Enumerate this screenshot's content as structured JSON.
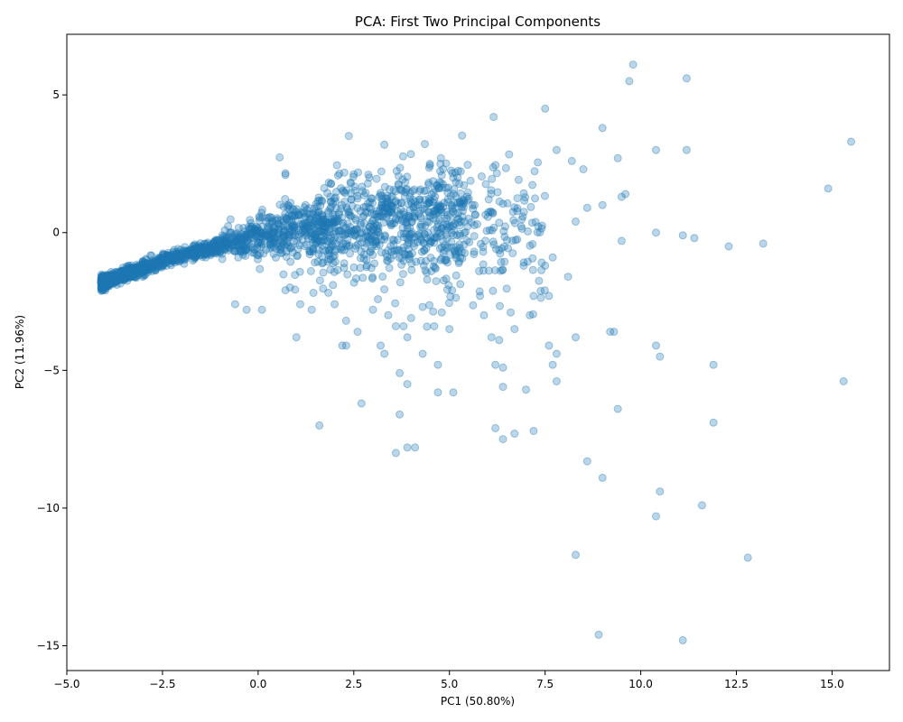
{
  "chart_data": {
    "type": "scatter",
    "title": "PCA: First Two Principal Components",
    "xlabel": "PC1 (50.80%)",
    "ylabel": "PC2 (11.96%)",
    "xlim": [
      -5.0,
      16.5
    ],
    "ylim": [
      -15.9,
      7.2
    ],
    "xticks": [
      -5.0,
      -2.5,
      0.0,
      2.5,
      5.0,
      7.5,
      10.0,
      12.5,
      15.0
    ],
    "xtick_labels": [
      "−5.0",
      "−2.5",
      "0.0",
      "2.5",
      "5.0",
      "7.5",
      "10.0",
      "12.5",
      "15.0"
    ],
    "yticks": [
      -15,
      -10,
      -5,
      0,
      5
    ],
    "ytick_labels": [
      "−15",
      "−10",
      "−5",
      "0",
      "5"
    ],
    "grid": false,
    "legend": "none",
    "marker_color": "#1f77b4",
    "marker_alpha": 0.3,
    "outlier_points": [
      [
        9.8,
        6.1
      ],
      [
        9.7,
        5.5
      ],
      [
        11.2,
        5.6
      ],
      [
        7.5,
        4.5
      ],
      [
        15.5,
        3.3
      ],
      [
        9.0,
        3.8
      ],
      [
        14.9,
        1.6
      ],
      [
        10.4,
        3.0
      ],
      [
        11.2,
        3.0
      ],
      [
        9.4,
        2.7
      ],
      [
        7.8,
        3.0
      ],
      [
        8.2,
        2.6
      ],
      [
        8.5,
        2.3
      ],
      [
        9.5,
        1.3
      ],
      [
        9.6,
        1.4
      ],
      [
        8.6,
        0.9
      ],
      [
        9.0,
        1.0
      ],
      [
        8.3,
        0.4
      ],
      [
        10.4,
        0.0
      ],
      [
        11.1,
        -0.1
      ],
      [
        11.4,
        -0.2
      ],
      [
        12.3,
        -0.5
      ],
      [
        13.2,
        -0.4
      ],
      [
        9.5,
        -0.3
      ],
      [
        15.3,
        -5.4
      ],
      [
        11.9,
        -4.8
      ],
      [
        11.9,
        -6.9
      ],
      [
        10.4,
        -4.1
      ],
      [
        10.5,
        -4.5
      ],
      [
        9.2,
        -3.6
      ],
      [
        9.3,
        -3.6
      ],
      [
        9.4,
        -6.4
      ],
      [
        8.6,
        -8.3
      ],
      [
        9.0,
        -8.9
      ],
      [
        10.5,
        -9.4
      ],
      [
        11.6,
        -9.9
      ],
      [
        10.4,
        -10.3
      ],
      [
        8.3,
        -11.7
      ],
      [
        12.8,
        -11.8
      ],
      [
        8.9,
        -14.6
      ],
      [
        11.1,
        -14.8
      ],
      [
        7.6,
        -4.1
      ],
      [
        7.8,
        -4.4
      ],
      [
        7.7,
        -4.8
      ],
      [
        7.8,
        -5.4
      ],
      [
        8.3,
        -3.8
      ],
      [
        6.2,
        -4.8
      ],
      [
        6.4,
        -4.9
      ],
      [
        6.4,
        -5.6
      ],
      [
        7.0,
        -5.7
      ],
      [
        6.2,
        -7.1
      ],
      [
        6.7,
        -7.3
      ],
      [
        6.4,
        -7.5
      ],
      [
        7.2,
        -7.2
      ],
      [
        4.7,
        -5.8
      ],
      [
        5.1,
        -5.8
      ],
      [
        4.7,
        -4.8
      ],
      [
        4.3,
        -4.4
      ],
      [
        3.9,
        -3.8
      ],
      [
        3.7,
        -5.1
      ],
      [
        3.9,
        -5.5
      ],
      [
        3.7,
        -6.6
      ],
      [
        2.7,
        -6.2
      ],
      [
        1.6,
        -7.0
      ],
      [
        3.6,
        -8.0
      ],
      [
        3.9,
        -7.8
      ],
      [
        4.1,
        -7.8
      ],
      [
        2.3,
        -4.1
      ],
      [
        2.2,
        -4.1
      ],
      [
        3.3,
        -4.4
      ],
      [
        3.2,
        -4.1
      ],
      [
        1.0,
        -3.8
      ],
      [
        6.6,
        -2.9
      ],
      [
        6.7,
        -3.5
      ],
      [
        7.1,
        -3.0
      ],
      [
        6.1,
        -3.8
      ],
      [
        6.3,
        -3.9
      ],
      [
        5.8,
        -2.3
      ],
      [
        5.9,
        -3.0
      ],
      [
        7.2,
        -2.3
      ],
      [
        7.6,
        -2.3
      ],
      [
        8.1,
        -1.6
      ],
      [
        7.5,
        -1.2
      ],
      [
        7.7,
        -0.9
      ],
      [
        5.0,
        -3.5
      ],
      [
        4.8,
        -2.9
      ],
      [
        3.0,
        -2.8
      ],
      [
        3.4,
        -3.0
      ],
      [
        4.0,
        -3.1
      ],
      [
        4.3,
        -2.7
      ],
      [
        4.6,
        -3.4
      ],
      [
        -0.6,
        -2.6
      ],
      [
        -0.3,
        -2.8
      ],
      [
        0.1,
        -2.8
      ],
      [
        1.4,
        -2.8
      ],
      [
        2.0,
        -2.6
      ],
      [
        2.6,
        -3.6
      ],
      [
        2.3,
        -3.2
      ],
      [
        3.8,
        -3.4
      ],
      [
        3.6,
        -3.4
      ],
      [
        1.1,
        -2.6
      ]
    ]
  }
}
